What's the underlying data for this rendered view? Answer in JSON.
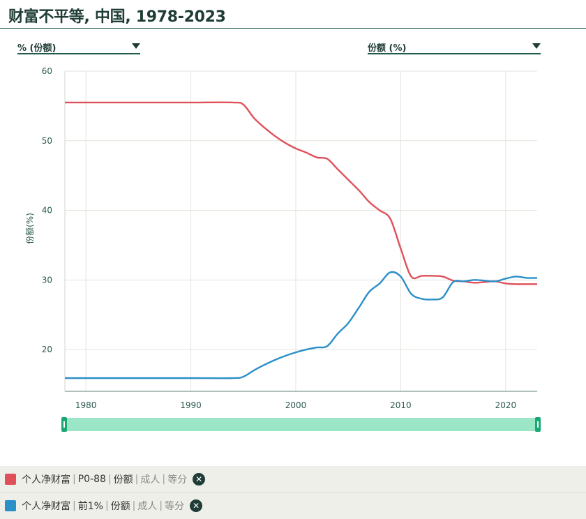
{
  "title": "财富不平等, 中国, 1978-2023",
  "controls": {
    "left_select": "% (份额)",
    "right_select": "份额 (%)"
  },
  "colors": {
    "series_red": "#e0505a",
    "series_blue": "#2b8fc8",
    "slider": "#9ce6c8",
    "handle": "#17a874"
  },
  "chart_data": {
    "type": "line",
    "title": "财富不平等, 中国, 1978-2023",
    "xlabel": "",
    "ylabel": "份额(%)",
    "xlim": [
      1978,
      2023
    ],
    "ylim": [
      14,
      60
    ],
    "x_ticks": [
      "1980",
      "1990",
      "2000",
      "2010",
      "2020"
    ],
    "y_ticks": [
      "20",
      "30",
      "40",
      "50",
      "60"
    ],
    "grid": true,
    "legend": "bottom",
    "x": [
      1978,
      1985,
      1990,
      1994,
      1995,
      1996,
      1997,
      1998,
      1999,
      2000,
      2001,
      2002,
      2003,
      2004,
      2005,
      2006,
      2007,
      2008,
      2009,
      2010,
      2011,
      2012,
      2013,
      2014,
      2015,
      2016,
      2017,
      2018,
      2019,
      2020,
      2021,
      2022,
      2023
    ],
    "series": [
      {
        "name": "个人净财富 | P0-88 | 份额 | 成人 | 等分",
        "color": "#e0505a",
        "values": [
          55.5,
          55.5,
          55.5,
          55.5,
          55.2,
          53.3,
          51.9,
          50.7,
          49.7,
          48.9,
          48.3,
          47.6,
          47.4,
          45.9,
          44.4,
          42.9,
          41.2,
          40.0,
          38.8,
          34.5,
          30.5,
          30.6,
          30.6,
          30.5,
          29.9,
          29.8,
          29.6,
          29.7,
          29.8,
          29.5,
          29.4,
          29.4,
          29.4
        ]
      },
      {
        "name": "个人净财富 | 前1% | 份额 | 成人 | 等分",
        "color": "#2b8fc8",
        "values": [
          15.9,
          15.9,
          15.9,
          15.9,
          16.1,
          17.0,
          17.8,
          18.5,
          19.1,
          19.6,
          20.0,
          20.3,
          20.5,
          22.3,
          23.8,
          26.0,
          28.3,
          29.5,
          31.1,
          30.5,
          28.0,
          27.3,
          27.2,
          27.5,
          29.7,
          29.8,
          30.0,
          29.9,
          29.8,
          30.2,
          30.5,
          30.3,
          30.3
        ]
      }
    ]
  },
  "legend_items": [
    {
      "parts": [
        "个人净财富",
        "P0-88",
        "份额"
      ],
      "muted": [
        "成人",
        "等分"
      ]
    },
    {
      "parts": [
        "个人净财富",
        "前1%",
        "份额"
      ],
      "muted": [
        "成人",
        "等分"
      ]
    }
  ],
  "icons": {
    "close": "close-icon",
    "caret": "chevron-down-icon",
    "handle": "range-handle-icon"
  }
}
